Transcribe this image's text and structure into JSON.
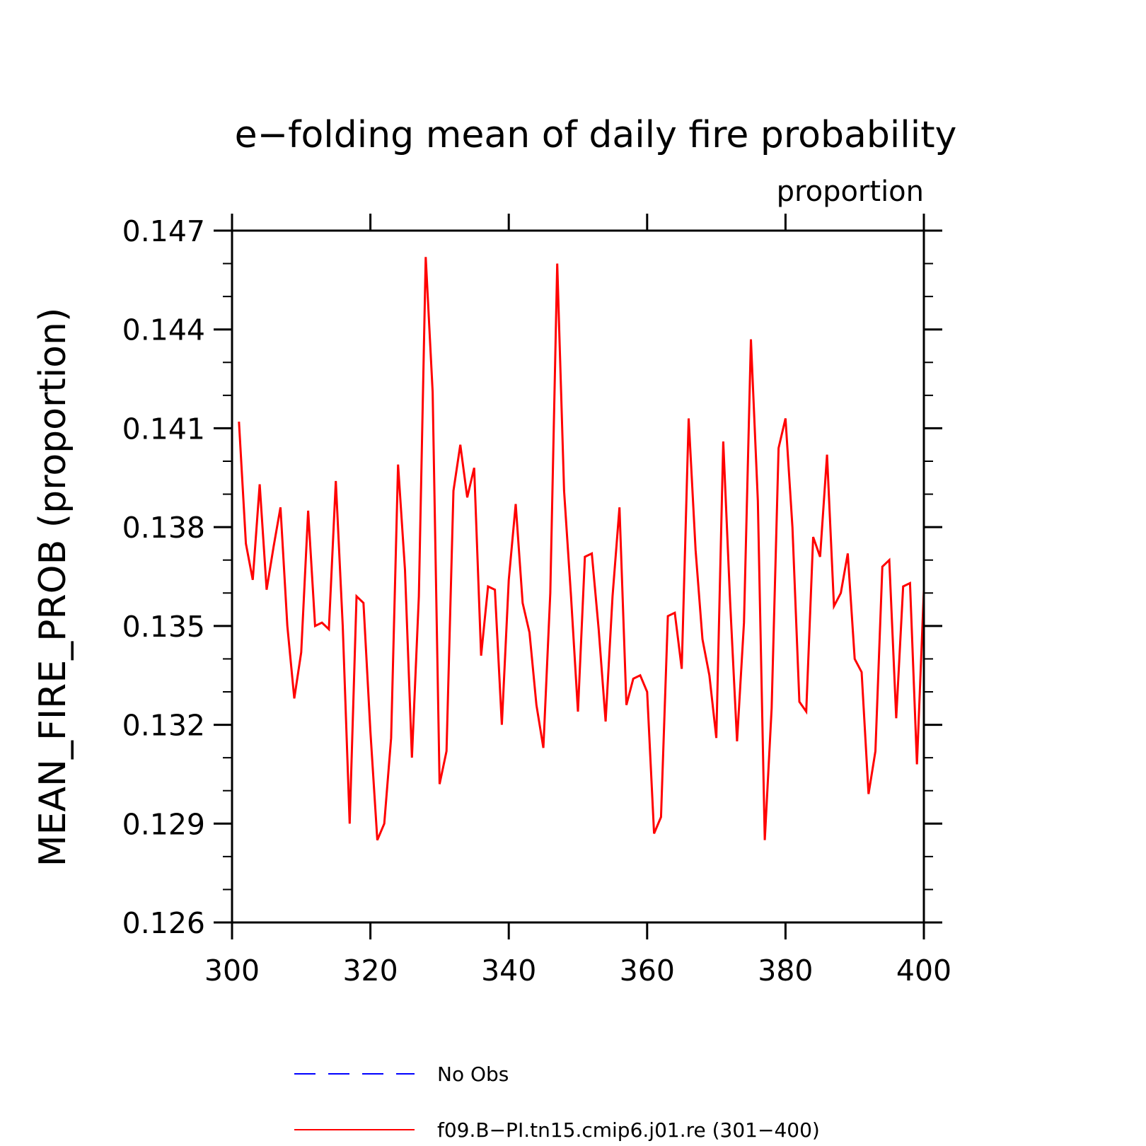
{
  "chart_data": {
    "type": "line",
    "title": "e−folding mean of daily fire probability",
    "subtitle": "proportion",
    "xlabel": "",
    "ylabel": "MEAN_FIRE_PROB   (proportion)",
    "xlim": [
      300,
      400
    ],
    "ylim": [
      0.126,
      0.147
    ],
    "x_ticks": [
      "300",
      "320",
      "340",
      "360",
      "380",
      "400"
    ],
    "y_ticks": [
      "0.126",
      "0.129",
      "0.132",
      "0.135",
      "0.138",
      "0.141",
      "0.144",
      "0.147"
    ],
    "legend": [
      {
        "label": "No Obs",
        "color": "#0000ff",
        "style": "dashed"
      },
      {
        "label": "f09.B−PI.tn15.cmip6.j01.re (301−400)",
        "color": "#ff0000",
        "style": "solid"
      }
    ],
    "series": [
      {
        "name": "f09.B−PI.tn15.cmip6.j01.re (301−400)",
        "color": "#ff0000",
        "x": [
          301,
          302,
          303,
          304,
          305,
          306,
          307,
          308,
          309,
          310,
          311,
          312,
          313,
          314,
          315,
          316,
          317,
          318,
          319,
          320,
          321,
          322,
          323,
          324,
          325,
          326,
          327,
          328,
          329,
          330,
          331,
          332,
          333,
          334,
          335,
          336,
          337,
          338,
          339,
          340,
          341,
          342,
          343,
          344,
          345,
          346,
          347,
          348,
          349,
          350,
          351,
          352,
          353,
          354,
          355,
          356,
          357,
          358,
          359,
          360,
          361,
          362,
          363,
          364,
          365,
          366,
          367,
          368,
          369,
          370,
          371,
          372,
          373,
          374,
          375,
          376,
          377,
          378,
          379,
          380,
          381,
          382,
          383,
          384,
          385,
          386,
          387,
          388,
          389,
          390,
          391,
          392,
          393,
          394,
          395,
          396,
          397,
          398,
          399,
          400
        ],
        "values": [
          0.1412,
          0.1375,
          0.1364,
          0.1393,
          0.1361,
          0.1374,
          0.1386,
          0.135,
          0.1328,
          0.1342,
          0.1385,
          0.135,
          0.1351,
          0.1349,
          0.1394,
          0.135,
          0.129,
          0.1359,
          0.1357,
          0.1318,
          0.1285,
          0.129,
          0.1316,
          0.1399,
          0.1367,
          0.131,
          0.1359,
          0.1462,
          0.1421,
          0.1302,
          0.1312,
          0.1391,
          0.1405,
          0.1389,
          0.1398,
          0.1341,
          0.1362,
          0.1361,
          0.132,
          0.1364,
          0.1387,
          0.1357,
          0.1348,
          0.1326,
          0.1313,
          0.136,
          0.146,
          0.1391,
          0.1359,
          0.1324,
          0.1371,
          0.1372,
          0.1349,
          0.1321,
          0.1359,
          0.1386,
          0.1326,
          0.1334,
          0.1335,
          0.133,
          0.1287,
          0.1292,
          0.1353,
          0.1354,
          0.1337,
          0.1413,
          0.1373,
          0.1346,
          0.1335,
          0.1316,
          0.1406,
          0.1357,
          0.1315,
          0.1351,
          0.1437,
          0.1388,
          0.1285,
          0.1325,
          0.1404,
          0.1413,
          0.138,
          0.1327,
          0.1324,
          0.1377,
          0.1371,
          0.1402,
          0.1356,
          0.136,
          0.1372,
          0.134,
          0.1336,
          0.1299,
          0.1312,
          0.1368,
          0.137,
          0.1322,
          0.1362,
          0.1363,
          0.1308,
          0.1361
        ]
      }
    ]
  }
}
